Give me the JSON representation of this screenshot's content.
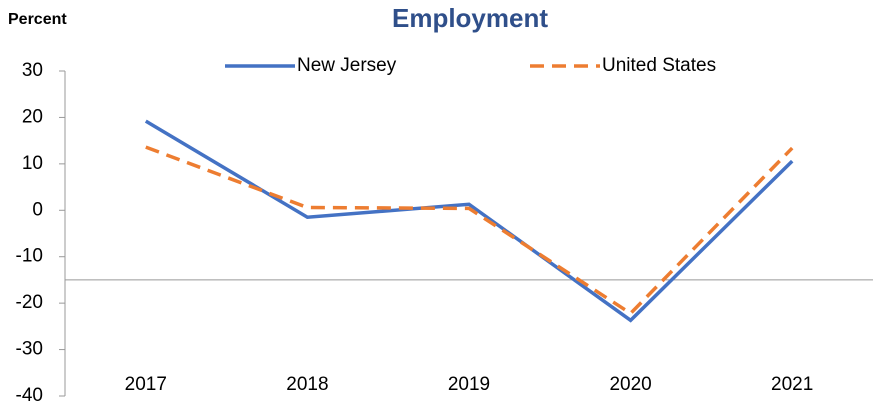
{
  "chart_data": {
    "type": "line",
    "title": "Employment",
    "ylabel": "Percent",
    "categories": [
      "2017",
      "2018",
      "2019",
      "2020",
      "2021"
    ],
    "series": [
      {
        "name": "New Jersey",
        "color": "#4472c4",
        "dash": false,
        "values": [
          19.2,
          -1.5,
          1.3,
          -23.7,
          10.6
        ]
      },
      {
        "name": "United States",
        "color": "#ed7d31",
        "dash": true,
        "values": [
          13.6,
          0.6,
          0.4,
          -22.2,
          13.4
        ]
      }
    ],
    "ylim": [
      -40,
      30
    ],
    "yticks": [
      -40,
      -30,
      -20,
      -10,
      0,
      10,
      20,
      30
    ],
    "x_axis_crosses": -15
  }
}
